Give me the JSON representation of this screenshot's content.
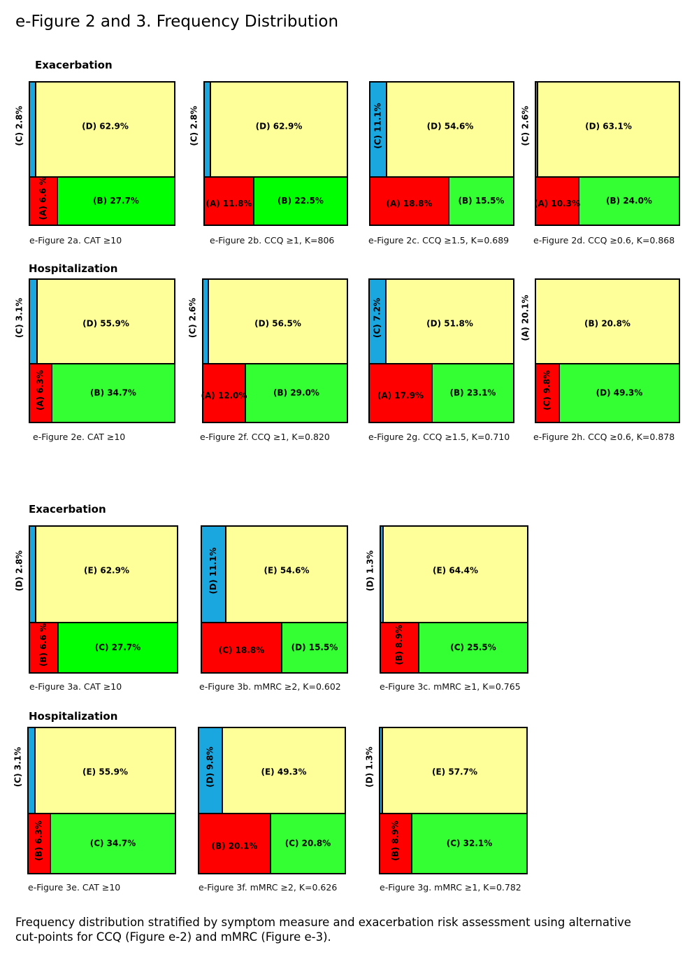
{
  "title": "e-Figure 2 and 3. Frequency Distribution",
  "footnote": "Frequency distribution stratified by symptom measure and exacerbation risk assessment using alternative cut-points for CCQ (Figure e-2) and mMRC (Figure e-3).",
  "sections": [
    "Exacerbation",
    "Hospitalization",
    "Exacerbation",
    "Hospitalization"
  ],
  "colors": {
    "blue": "#1aa7e0",
    "yellow": "#ffff99",
    "red": "#ff0000",
    "green": "#00ff00",
    "green_light": "#33ff33",
    "border": "#000000"
  },
  "chart_data": [
    {
      "id": "2a",
      "type": "mosaic",
      "caption": "e-Figure 2a. CAT ≥10",
      "top": [
        {
          "label": "(C)  2.8%",
          "value": 2.8,
          "color": "blue"
        },
        {
          "label": "(D) 62.9%",
          "value": 62.9,
          "color": "yellow"
        }
      ],
      "bottom": [
        {
          "label": "(A) 6.6 %",
          "value": 6.6,
          "color": "red"
        },
        {
          "label": "(B) 27.7%",
          "value": 27.7,
          "color": "green"
        }
      ]
    },
    {
      "id": "2b",
      "type": "mosaic",
      "caption": "e-Figure 2b. CCQ ≥1, Κ=806",
      "top": [
        {
          "label": "(C)  2.8%",
          "value": 2.8,
          "color": "blue"
        },
        {
          "label": "(D) 62.9%",
          "value": 62.9,
          "color": "yellow"
        }
      ],
      "bottom": [
        {
          "label": "(A) 11.8%",
          "value": 11.8,
          "color": "red"
        },
        {
          "label": "(B) 22.5%",
          "value": 22.5,
          "color": "green"
        }
      ]
    },
    {
      "id": "2c",
      "type": "mosaic",
      "caption": "e-Figure 2c. CCQ ≥1.5, Κ=0.689",
      "top": [
        {
          "label": "(C) 11.1%",
          "value": 11.1,
          "color": "blue"
        },
        {
          "label": "(D) 54.6%",
          "value": 54.6,
          "color": "yellow"
        }
      ],
      "bottom": [
        {
          "label": "(A) 18.8%",
          "value": 18.8,
          "color": "red"
        },
        {
          "label": "(B) 15.5%",
          "value": 15.5,
          "color": "green_light"
        }
      ]
    },
    {
      "id": "2d",
      "type": "mosaic",
      "caption": "e-Figure 2d. CCQ ≥0.6, Κ=0.868",
      "top": [
        {
          "label": "(C)  2.6%",
          "value": 2.6,
          "color": "blue"
        },
        {
          "label": "(D) 63.1%",
          "value": 63.1,
          "color": "yellow"
        }
      ],
      "bottom": [
        {
          "label": "(A) 10.3%",
          "value": 10.3,
          "color": "red"
        },
        {
          "label": "(B) 24.0%",
          "value": 24.0,
          "color": "green_light"
        }
      ]
    },
    {
      "id": "2e",
      "type": "mosaic",
      "caption": "e-Figure 2e. CAT ≥10",
      "top": [
        {
          "label": "(C)  3.1%",
          "value": 3.1,
          "color": "blue"
        },
        {
          "label": "(D) 55.9%",
          "value": 55.9,
          "color": "yellow"
        }
      ],
      "bottom": [
        {
          "label": "(A) 6.3%",
          "value": 6.3,
          "color": "red"
        },
        {
          "label": "(B) 34.7%",
          "value": 34.7,
          "color": "green_light"
        }
      ]
    },
    {
      "id": "2f",
      "type": "mosaic",
      "caption": "e-Figure 2f. CCQ ≥1, Κ=0.820",
      "top": [
        {
          "label": "(C)  2.6%",
          "value": 2.6,
          "color": "blue"
        },
        {
          "label": "(D) 56.5%",
          "value": 56.5,
          "color": "yellow"
        }
      ],
      "bottom": [
        {
          "label": "(A) 12.0%",
          "value": 12.0,
          "color": "red"
        },
        {
          "label": "(B) 29.0%",
          "value": 29.0,
          "color": "green_light"
        }
      ]
    },
    {
      "id": "2g",
      "type": "mosaic",
      "caption": "e-Figure 2g. CCQ ≥1.5, Κ=0.710",
      "top": [
        {
          "label": "(C)  7.2%",
          "value": 7.2,
          "color": "blue"
        },
        {
          "label": "(D) 51.8%",
          "value": 51.8,
          "color": "yellow"
        }
      ],
      "bottom": [
        {
          "label": "(A) 17.9%",
          "value": 17.9,
          "color": "red"
        },
        {
          "label": "(B) 23.1%",
          "value": 23.1,
          "color": "green_light"
        }
      ]
    },
    {
      "id": "2h",
      "type": "mosaic",
      "caption": "e-Figure 2h. CCQ ≥0.6, Κ=0.878",
      "top": [
        {
          "label": "(A) 20.1%",
          "value": 20.1,
          "color": "yellow"
        },
        {
          "label": "(B) 20.8%",
          "value": 20.8,
          "color": "yellow"
        }
      ],
      "bottom": [
        {
          "label": "(C) 9.8%",
          "value": 9.8,
          "color": "red"
        },
        {
          "label": "(D) 49.3%",
          "value": 49.3,
          "color": "green_light"
        }
      ]
    },
    {
      "id": "3a",
      "type": "mosaic",
      "caption": "e-Figure 3a. CAT ≥10",
      "top": [
        {
          "label": "(D) 2.8%",
          "value": 2.8,
          "color": "blue"
        },
        {
          "label": "(E)  62.9%",
          "value": 62.9,
          "color": "yellow"
        }
      ],
      "bottom": [
        {
          "label": "(B) 6.6 %",
          "value": 6.6,
          "color": "red"
        },
        {
          "label": "(C)  27.7%",
          "value": 27.7,
          "color": "green"
        }
      ]
    },
    {
      "id": "3b",
      "type": "mosaic",
      "caption": "e-Figure 3b. mMRC ≥2, Κ=0.602",
      "top": [
        {
          "label": "(D) 11.1%",
          "value": 11.1,
          "color": "blue"
        },
        {
          "label": "(E)  54.6%",
          "value": 54.6,
          "color": "yellow"
        }
      ],
      "bottom": [
        {
          "label": "(C)  18.8%",
          "value": 18.8,
          "color": "red"
        },
        {
          "label": "(D) 15.5%",
          "value": 15.5,
          "color": "green_light"
        }
      ]
    },
    {
      "id": "3c",
      "type": "mosaic",
      "caption": "e-Figure 3c. mMRC ≥1, Κ=0.765",
      "top": [
        {
          "label": "(D)  1.3%",
          "value": 1.3,
          "color": "blue"
        },
        {
          "label": "(E)  64.4%",
          "value": 64.4,
          "color": "yellow"
        }
      ],
      "bottom": [
        {
          "label": "(B)  8.9%",
          "value": 8.9,
          "color": "red"
        },
        {
          "label": "(C)  25.5%",
          "value": 25.5,
          "color": "green_light"
        }
      ]
    },
    {
      "id": "3e",
      "type": "mosaic",
      "caption": "e-Figure 3e. CAT ≥10",
      "top": [
        {
          "label": "(C)  3.1%",
          "value": 3.1,
          "color": "blue"
        },
        {
          "label": "(E)  55.9%",
          "value": 55.9,
          "color": "yellow"
        }
      ],
      "bottom": [
        {
          "label": "(B) 6.3%",
          "value": 6.3,
          "color": "red"
        },
        {
          "label": "(C)  34.7%",
          "value": 34.7,
          "color": "green_light"
        }
      ]
    },
    {
      "id": "3f",
      "type": "mosaic",
      "caption": "e-Figure 3f. mMRC ≥2, Κ=0.626",
      "top": [
        {
          "label": "(D) 9.8%",
          "value": 9.8,
          "color": "blue"
        },
        {
          "label": "(E)  49.3%",
          "value": 49.3,
          "color": "yellow"
        }
      ],
      "bottom": [
        {
          "label": "(B)  20.1%",
          "value": 20.1,
          "color": "red"
        },
        {
          "label": "(C)  20.8%",
          "value": 20.8,
          "color": "green_light"
        }
      ]
    },
    {
      "id": "3g",
      "type": "mosaic",
      "caption": "e-Figure 3g. mMRC ≥1, Κ=0.782",
      "top": [
        {
          "label": "(D)  1.3%",
          "value": 1.3,
          "color": "blue"
        },
        {
          "label": "(E)  57.7%",
          "value": 57.7,
          "color": "yellow"
        }
      ],
      "bottom": [
        {
          "label": "(B)  8.9%",
          "value": 8.9,
          "color": "red"
        },
        {
          "label": "(C)  32.1%",
          "value": 32.1,
          "color": "green_light"
        }
      ]
    }
  ]
}
